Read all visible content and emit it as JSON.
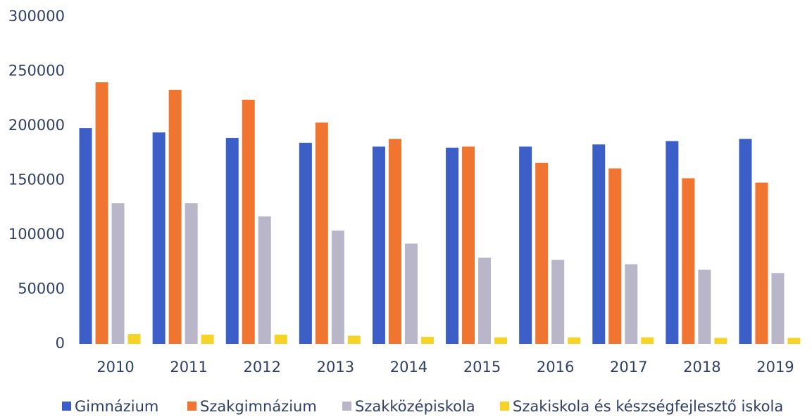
{
  "chart_data": {
    "type": "bar",
    "categories": [
      "2010",
      "2011",
      "2012",
      "2013",
      "2014",
      "2015",
      "2016",
      "2017",
      "2018",
      "2019"
    ],
    "series": [
      {
        "name": "Gimnázium",
        "color": "#3b5fc6",
        "values": [
          198000,
          194000,
          189000,
          184500,
          181000,
          180000,
          181000,
          183000,
          186000,
          188000
        ]
      },
      {
        "name": "Szakgimnázium",
        "color": "#f07530",
        "values": [
          240000,
          233000,
          224000,
          203000,
          188000,
          181000,
          166000,
          161000,
          152000,
          148000
        ]
      },
      {
        "name": "Szakközépiskola",
        "color": "#b9b6c9",
        "values": [
          129000,
          129000,
          117000,
          104000,
          92000,
          79000,
          77000,
          73000,
          68000,
          65000
        ]
      },
      {
        "name": "Szakiskola és készségfejlesztő iskola",
        "color": "#f6d327",
        "values": [
          9000,
          8500,
          8500,
          7500,
          6500,
          6000,
          6000,
          6000,
          5500,
          5500
        ]
      }
    ],
    "ylim": [
      0,
      300000
    ],
    "yticks": [
      0,
      50000,
      100000,
      150000,
      200000,
      250000,
      300000
    ],
    "grid": false,
    "legend": "bottom"
  }
}
